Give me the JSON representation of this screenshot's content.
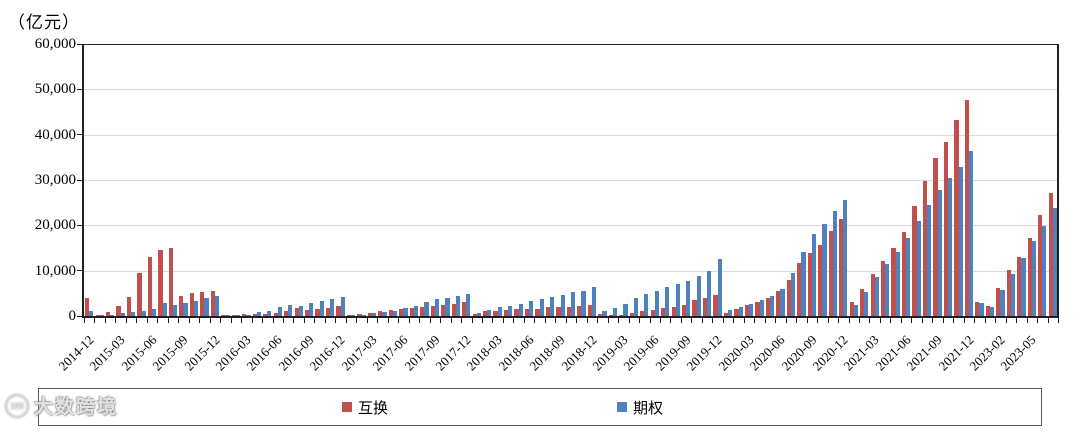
{
  "title": "（亿元）",
  "watermark": {
    "logo_text": "100",
    "text": "大数跨境"
  },
  "colors": {
    "swap": "#C0504D",
    "option": "#4F81BD",
    "gridline": "#D9D9D9",
    "axis": "#1F1F1F"
  },
  "chart_data": {
    "type": "bar",
    "title": "（亿元）",
    "xlabel": "",
    "ylabel": "（亿元）",
    "ylim": [
      0,
      60000
    ],
    "ytick_step": 10000,
    "ytick_labels": [
      "0",
      "10,000",
      "20,000",
      "30,000",
      "40,000",
      "50,000",
      "60,000"
    ],
    "grid": true,
    "legend_position": "bottom",
    "label_every": 3,
    "categories": [
      "2014-12",
      "2015-01",
      "2015-02",
      "2015-03",
      "2015-04",
      "2015-05",
      "2015-06",
      "2015-07",
      "2015-08",
      "2015-09",
      "2015-10",
      "2015-11",
      "2015-12",
      "2016-01",
      "2016-02",
      "2016-03",
      "2016-04",
      "2016-05",
      "2016-06",
      "2016-07",
      "2016-08",
      "2016-09",
      "2016-10",
      "2016-11",
      "2016-12",
      "2017-01",
      "2017-02",
      "2017-03",
      "2017-04",
      "2017-05",
      "2017-06",
      "2017-07",
      "2017-08",
      "2017-09",
      "2017-10",
      "2017-11",
      "2017-12",
      "2018-01",
      "2018-02",
      "2018-03",
      "2018-04",
      "2018-05",
      "2018-06",
      "2018-07",
      "2018-08",
      "2018-09",
      "2018-10",
      "2018-11",
      "2018-12",
      "2019-01",
      "2019-02",
      "2019-03",
      "2019-04",
      "2019-05",
      "2019-06",
      "2019-07",
      "2019-08",
      "2019-09",
      "2019-10",
      "2019-11",
      "2019-12",
      "2020-01",
      "2020-02",
      "2020-03",
      "2020-04",
      "2020-05",
      "2020-06",
      "2020-07",
      "2020-08",
      "2020-09",
      "2020-10",
      "2020-11",
      "2020-12",
      "2021-01",
      "2021-02",
      "2021-03",
      "2021-04",
      "2021-05",
      "2021-06",
      "2021-07",
      "2021-08",
      "2021-09",
      "2021-10",
      "2021-11",
      "2021-12",
      "2022-12",
      "2023-01",
      "2023-02",
      "2023-03",
      "2023-04",
      "2023-05",
      "2023-06",
      "2023-07"
    ],
    "series": [
      {
        "name": "互换",
        "color": "#C0504D",
        "values": [
          4000,
          200,
          800,
          2100,
          4100,
          9500,
          13000,
          14500,
          15000,
          4400,
          5100,
          5400,
          5600,
          100,
          200,
          400,
          400,
          500,
          600,
          1100,
          1700,
          1400,
          1600,
          1800,
          2100,
          100,
          500,
          700,
          1000,
          1400,
          1500,
          1700,
          2000,
          2300,
          2500,
          2700,
          3000,
          500,
          1000,
          1100,
          1300,
          1500,
          1600,
          1600,
          1900,
          2000,
          2000,
          2200,
          2400,
          400,
          200,
          300,
          600,
          1000,
          1400,
          1800,
          2000,
          2400,
          3500,
          4000,
          4700,
          700,
          1600,
          2400,
          3100,
          4000,
          5600,
          8000,
          11600,
          13800,
          15700,
          18700,
          21300,
          3000,
          5900,
          9300,
          12200,
          15000,
          18600,
          24200,
          29800,
          34900,
          38400,
          43300,
          47700,
          3100,
          2200,
          6200,
          10200,
          13100,
          17200,
          22200,
          27100
        ]
      },
      {
        "name": "期权",
        "color": "#4F81BD",
        "values": [
          1200,
          200,
          300,
          700,
          900,
          1100,
          1600,
          2800,
          2400,
          2800,
          3400,
          3900,
          4500,
          100,
          200,
          300,
          900,
          1100,
          2000,
          2400,
          2300,
          2900,
          3300,
          3700,
          4100,
          100,
          300,
          600,
          900,
          1200,
          1700,
          2300,
          3200,
          3800,
          3900,
          4400,
          4800,
          700,
          1300,
          1900,
          2200,
          2700,
          3300,
          3700,
          4100,
          4700,
          5200,
          5600,
          6400,
          1100,
          1700,
          2600,
          3900,
          4800,
          5500,
          6300,
          7000,
          7800,
          8800,
          10000,
          12600,
          1300,
          2000,
          2700,
          3500,
          4400,
          5900,
          9500,
          14200,
          18100,
          20400,
          23100,
          25700,
          2400,
          5300,
          8600,
          11500,
          14200,
          17300,
          20900,
          24400,
          27800,
          30400,
          32900,
          36400,
          2900,
          2000,
          5800,
          9300,
          12700,
          16500,
          19900,
          23800
        ]
      }
    ]
  }
}
